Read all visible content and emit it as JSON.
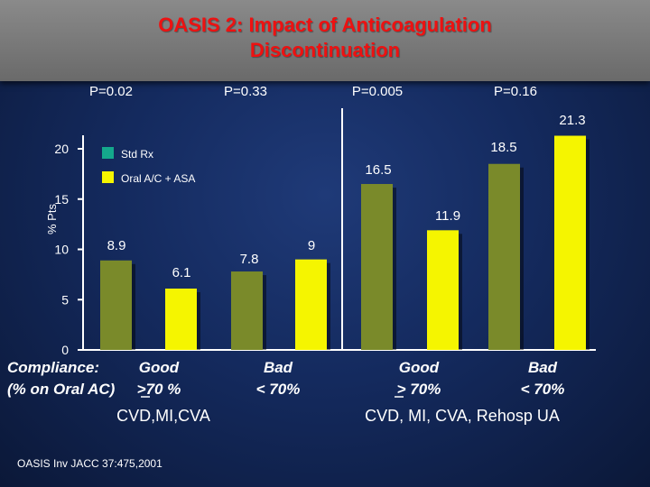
{
  "title_line1": "OASIS 2: Impact of Anticoagulation",
  "title_line2": "Discontinuation",
  "chart_data": {
    "type": "bar",
    "title": "OASIS 2: Impact of Anticoagulation Discontinuation",
    "ylabel": "% Pts",
    "ylim": [
      0,
      22
    ],
    "yticks": [
      "0",
      "5",
      "10",
      "15",
      "20"
    ],
    "p_values": [
      "P=0.02",
      "P=0.33",
      "P=0.005",
      "P=0.16"
    ],
    "groups": [
      {
        "outcome": "CVD,MI,CVA",
        "compliance": "Good",
        "compliance_sub": ">70 %",
        "std_label": "8.9",
        "std": 8.9,
        "oral_label": "6.1",
        "oral": 6.1
      },
      {
        "outcome": "CVD,MI,CVA",
        "compliance": "Bad",
        "compliance_sub": "< 70%",
        "std_label": "7.8",
        "std": 7.8,
        "oral_label": "9",
        "oral": 9
      },
      {
        "outcome": "CVD, MI, CVA, Rehosp UA",
        "compliance": "Good",
        "compliance_sub": "> 70%",
        "std_label": "16.5",
        "std": 16.5,
        "oral_label": "11.9",
        "oral": 11.9
      },
      {
        "outcome": "CVD, MI, CVA, Rehosp UA",
        "compliance": "Bad",
        "compliance_sub": "< 70%",
        "std_label": "18.5",
        "std": 18.5,
        "oral_label": "21.3",
        "oral": 21.3
      }
    ],
    "legend": [
      {
        "name": "Std Rx",
        "color": "#14a88c"
      },
      {
        "name": "Oral A/C + ASA",
        "color": "#f5f500"
      }
    ],
    "series_colors": {
      "std": "#7a8a2a",
      "oral": "#f5f500"
    },
    "compliance_heading_1": "Compliance:",
    "compliance_heading_2": "(% on Oral AC)",
    "outcome_left": "CVD,MI,CVA",
    "outcome_right": "CVD, MI, CVA, Rehosp UA"
  },
  "citation": "OASIS Inv JACC 37:475,2001"
}
